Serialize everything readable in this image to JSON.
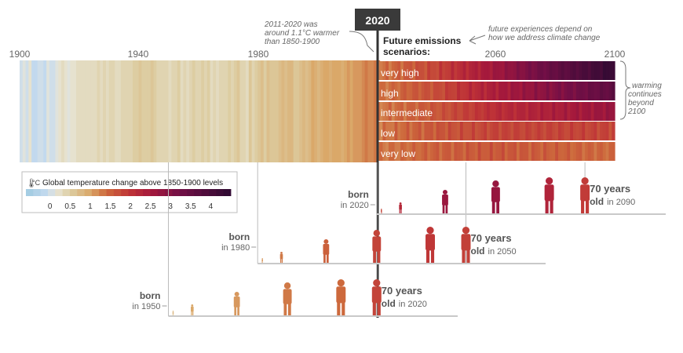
{
  "chart_data": {
    "type": "heatmap",
    "title": "",
    "xlabel": "",
    "ylabel": "",
    "x_range": [
      1900,
      2100
    ],
    "x_ticks": [
      "1900",
      "1940",
      "1980",
      "2060",
      "2100"
    ],
    "now_year": 2020,
    "now_label": "2020",
    "observed_end_year": 2020,
    "observed_anomalies": [
      0.0,
      0.1,
      0.0,
      0.2,
      -0.1,
      -0.1,
      0.0,
      0.0,
      -0.1,
      0.1,
      0.0,
      0.0,
      0.1,
      0.2,
      0.3,
      0.2,
      0.1,
      0.2,
      0.2,
      0.3,
      0.3,
      0.3,
      0.3,
      0.3,
      0.3,
      0.3,
      0.4,
      0.3,
      0.4,
      0.3,
      0.4,
      0.4,
      0.3,
      0.3,
      0.4,
      0.4,
      0.4,
      0.4,
      0.5,
      0.5,
      0.6,
      0.5,
      0.5,
      0.5,
      0.6,
      0.5,
      0.4,
      0.4,
      0.4,
      0.4,
      0.3,
      0.4,
      0.4,
      0.5,
      0.3,
      0.4,
      0.3,
      0.4,
      0.5,
      0.4,
      0.4,
      0.5,
      0.4,
      0.5,
      0.3,
      0.4,
      0.3,
      0.4,
      0.4,
      0.4,
      0.5,
      0.4,
      0.5,
      0.6,
      0.4,
      0.4,
      0.3,
      0.6,
      0.4,
      0.5,
      0.6,
      0.7,
      0.5,
      0.7,
      0.6,
      0.6,
      0.6,
      0.7,
      0.8,
      0.7,
      0.8,
      0.8,
      0.6,
      0.6,
      0.7,
      0.8,
      0.7,
      0.8,
      1.0,
      0.9,
      0.8,
      0.9,
      1.0,
      1.0,
      0.9,
      1.0,
      1.0,
      1.0,
      0.9,
      1.0,
      1.1,
      1.0,
      1.1,
      1.1,
      1.1,
      1.2,
      1.3,
      1.2,
      1.2,
      1.3,
      1.3
    ],
    "scenarios": [
      {
        "name": "very high",
        "value_2040": 1.8,
        "value_2060": 2.6,
        "value_2100": 4.4
      },
      {
        "name": "high",
        "value_2040": 1.7,
        "value_2060": 2.4,
        "value_2100": 3.6
      },
      {
        "name": "intermediate",
        "value_2040": 1.6,
        "value_2060": 2.1,
        "value_2100": 2.7
      },
      {
        "name": "low",
        "value_2040": 1.6,
        "value_2060": 1.8,
        "value_2100": 1.8
      },
      {
        "name": "very low",
        "value_2040": 1.5,
        "value_2060": 1.6,
        "value_2100": 1.4
      }
    ],
    "colorbar": {
      "label": "Global temperature change above 1850-1900 levels",
      "unit": "°C",
      "ticks": [
        "0",
        "0.5",
        "1",
        "1.5",
        "2",
        "2.5",
        "3",
        "3.5",
        "4"
      ],
      "range": [
        -0.6,
        4.5
      ]
    },
    "scenarios_heading": [
      "Future emissions",
      "scenarios:"
    ],
    "annotations": {
      "past_note": [
        "2011-2020 was",
        "around 1.1°C warmer",
        "than 1850-1900"
      ],
      "future_note": [
        "future experiences depend on",
        "how we address climate change"
      ],
      "warming_note": [
        "warming",
        "continues",
        "beyond",
        "2100"
      ]
    },
    "generations": [
      {
        "birth_year": 1950,
        "born_word": "born",
        "born_in": "in 1950",
        "age_year": 2020,
        "age_title": "70 years",
        "age_word": "old",
        "age_in": "in 2020"
      },
      {
        "birth_year": 1980,
        "born_word": "born",
        "born_in": "in 1980",
        "age_year": 2050,
        "age_title": "70 years",
        "age_word": "old",
        "age_in": "in 2050"
      },
      {
        "birth_year": 2020,
        "born_word": "born",
        "born_in": "in 2020",
        "age_year": 2090,
        "age_title": "70 years",
        "age_word": "old",
        "age_in": "in 2090"
      }
    ]
  }
}
